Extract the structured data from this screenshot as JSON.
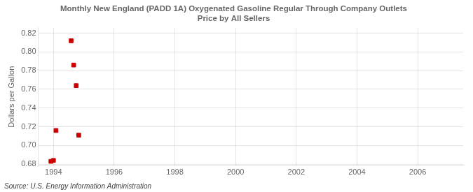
{
  "chart_data": {
    "type": "scatter",
    "title": "Monthly New England (PADD 1A) Oxygenated Gasoline Regular Through Company Outlets\nPrice by All Sellers",
    "ylabel": "Dollars per Gallon",
    "annotations": [
      "Source: U.S. Energy Information Administration"
    ],
    "x": [
      1993.917,
      1994.0,
      1994.083,
      1994.583,
      1994.667,
      1994.75,
      1994.833
    ],
    "values": [
      0.683,
      0.684,
      0.716,
      0.812,
      0.786,
      0.764,
      0.711
    ],
    "color": "#cc0000",
    "marker": "square",
    "xlim": [
      1993.5,
      2007.5
    ],
    "ylim": [
      0.678,
      0.826
    ],
    "xticks": [
      1994,
      1996,
      1998,
      2000,
      2002,
      2004,
      2006
    ],
    "yticks": [
      0.68,
      {
        "value": 0.7,
        "label": "0.70"
      },
      0.72,
      0.74,
      0.76,
      0.78,
      {
        "value": 0.8,
        "label": "0.80"
      },
      0.82
    ],
    "grid": true
  }
}
